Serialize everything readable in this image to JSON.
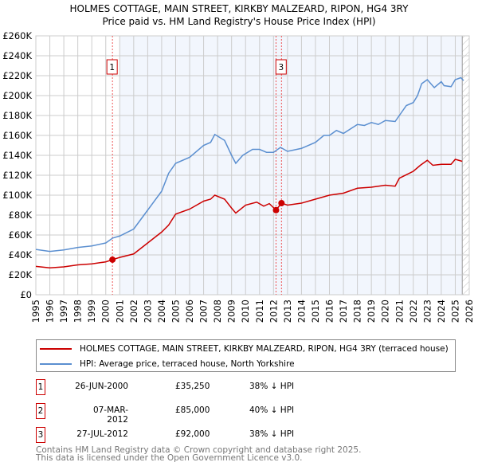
{
  "chart_data": {
    "type": "line",
    "title": "HOLMES COTTAGE, MAIN STREET, KIRKBY MALZEARD, RIPON, HG4 3RY",
    "subtitle": "Price paid vs. HM Land Registry's House Price Index (HPI)",
    "xlim": [
      1995,
      2026
    ],
    "ylim": [
      0,
      260000
    ],
    "x_ticks": [
      "1995",
      "1996",
      "1997",
      "1998",
      "1999",
      "2000",
      "2001",
      "2002",
      "2003",
      "2004",
      "2005",
      "2006",
      "2007",
      "2008",
      "2009",
      "2010",
      "2011",
      "2012",
      "2013",
      "2014",
      "2015",
      "2016",
      "2017",
      "2018",
      "2019",
      "2020",
      "2021",
      "2022",
      "2023",
      "2024",
      "2025",
      "2026"
    ],
    "y_ticks": [
      "£0",
      "£20K",
      "£40K",
      "£60K",
      "£80K",
      "£100K",
      "£120K",
      "£140K",
      "£160K",
      "£180K",
      "£200K",
      "£220K",
      "£240K",
      "£260K"
    ],
    "grid": true,
    "series": [
      {
        "name": "HOLMES COTTAGE, MAIN STREET, KIRKBY MALZEARD, RIPON, HG4 3RY (terraced house)",
        "color": "#cc0000",
        "x": [
          1995,
          1996,
          1997,
          1998,
          1999,
          2000,
          2000.48,
          2001,
          2002,
          2003,
          2004,
          2004.5,
          2005,
          2006,
          2007,
          2007.5,
          2007.8,
          2008.5,
          2009,
          2009.3,
          2010,
          2010.8,
          2011.3,
          2011.7,
          2012.18,
          2012.57,
          2013,
          2014,
          2015,
          2016,
          2017,
          2018,
          2019,
          2020,
          2020.7,
          2021,
          2022,
          2022.5,
          2023,
          2023.4,
          2024,
          2024.7,
          2025,
          2025.5
        ],
        "y": [
          28500,
          27000,
          28000,
          30000,
          31000,
          33000,
          35250,
          37500,
          41000,
          52000,
          63000,
          70000,
          81000,
          86000,
          94000,
          96000,
          100000,
          96000,
          87000,
          82000,
          90000,
          93000,
          89000,
          91500,
          85000,
          92000,
          90000,
          92000,
          96000,
          100000,
          102000,
          107000,
          108000,
          110000,
          109000,
          117000,
          124000,
          130000,
          135000,
          130000,
          131000,
          131000,
          136000,
          134000
        ]
      },
      {
        "name": "HPI: Average price, terraced house, North Yorkshire",
        "color": "#5b8fd0",
        "x": [
          1995,
          1996,
          1997,
          1998,
          1999,
          2000,
          2000.5,
          2001,
          2002,
          2003,
          2004,
          2004.5,
          2005,
          2006,
          2007,
          2007.5,
          2007.8,
          2008.5,
          2009,
          2009.3,
          2009.8,
          2010.5,
          2011,
          2011.5,
          2012,
          2012.5,
          2013,
          2014,
          2015,
          2015.6,
          2016,
          2016.5,
          2017,
          2018,
          2018.5,
          2019,
          2019.5,
          2020,
          2020.7,
          2021,
          2021.5,
          2022,
          2022.3,
          2022.6,
          2023,
          2023.5,
          2024,
          2024.2,
          2024.7,
          2025,
          2025.4,
          2025.6
        ],
        "y": [
          45500,
          43500,
          45000,
          47500,
          49000,
          52000,
          57000,
          59000,
          66000,
          85000,
          104000,
          122000,
          132000,
          138000,
          150000,
          153000,
          161000,
          155000,
          140000,
          132000,
          140000,
          146000,
          146000,
          143000,
          143000,
          148000,
          144000,
          147000,
          153000,
          160000,
          160000,
          165000,
          162000,
          171000,
          170000,
          173000,
          171000,
          175000,
          174000,
          180000,
          190000,
          193000,
          200000,
          212000,
          216000,
          208000,
          214000,
          210000,
          209000,
          216000,
          218000,
          215000
        ]
      }
    ],
    "sales": [
      {
        "id": "1",
        "date": "26-JUN-2000",
        "price": "£35,250",
        "hpi": "38% ↓ HPI",
        "x": 2000.48,
        "y": 35250
      },
      {
        "id": "2",
        "date": "07-MAR-2012",
        "price": "£85,000",
        "hpi": "40% ↓ HPI",
        "x": 2012.18,
        "y": 85000
      },
      {
        "id": "3",
        "date": "27-JUL-2012",
        "price": "£92,000",
        "hpi": "38% ↓ HPI",
        "x": 2012.57,
        "y": 92000
      }
    ],
    "shade_from": 2001,
    "forecast_from": 2025.5
  },
  "footer": {
    "line1": "Contains HM Land Registry data © Crown copyright and database right 2025.",
    "line2": "This data is licensed under the Open Government Licence v3.0."
  }
}
